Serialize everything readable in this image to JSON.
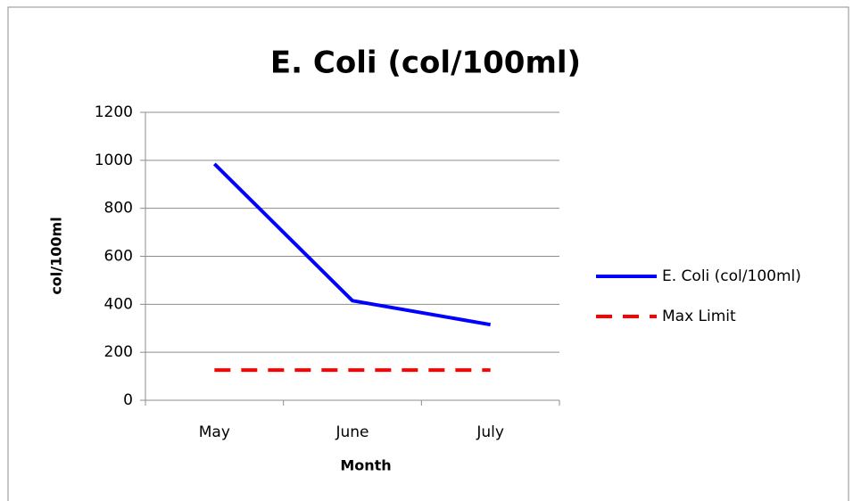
{
  "chart_data": {
    "type": "line",
    "title": "E. Coli (col/100ml)",
    "x_label": "Month",
    "y_label": "col/100ml",
    "categories": [
      "May",
      "June",
      "July"
    ],
    "series": [
      {
        "name": "E. Coli (col/100ml)",
        "color": "#0000ff",
        "line_style": "solid",
        "values": [
          985,
          415,
          315
        ]
      },
      {
        "name": "Max Limit",
        "color": "#ff0000",
        "line_style": "dashed",
        "values": [
          126,
          126,
          126
        ]
      }
    ],
    "ylim": [
      0,
      1200
    ],
    "yticks": [
      0,
      200,
      400,
      600,
      800,
      1000,
      1200
    ],
    "grid": true,
    "legend": "right"
  }
}
